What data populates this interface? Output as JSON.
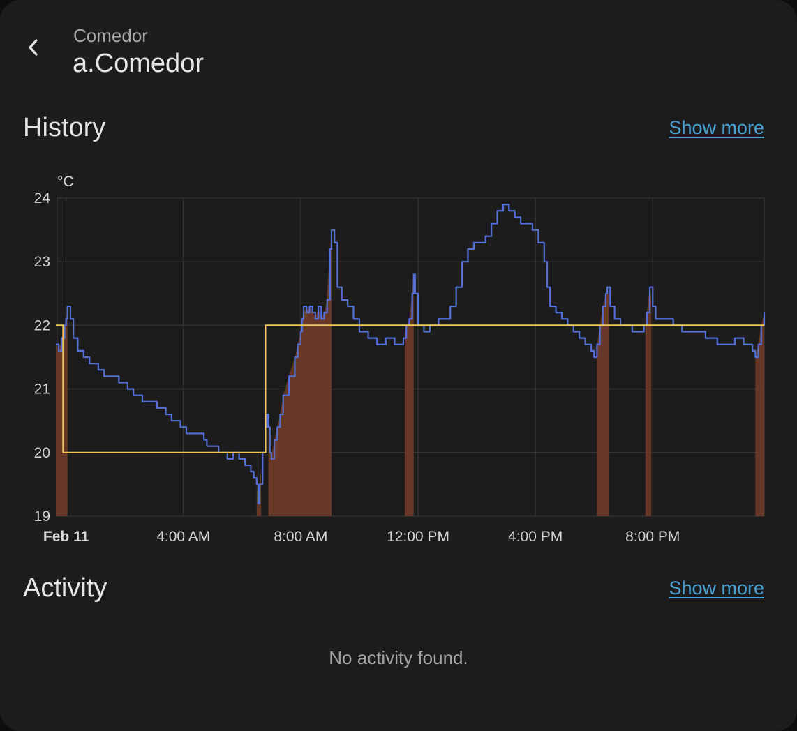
{
  "header": {
    "back_icon": "chevron-left-icon",
    "subtitle": "Comedor",
    "title": "a.Comedor"
  },
  "history": {
    "title": "History",
    "show_more": "Show more"
  },
  "activity": {
    "title": "Activity",
    "show_more": "Show more",
    "empty_text": "No activity found."
  },
  "colors": {
    "background": "#1c1c1c",
    "current_temperature": "#5470d6",
    "target_temperature": "#f2c55c",
    "heating": "#6b3a28",
    "link": "#4aa0d3"
  },
  "chart_data": {
    "type": "line",
    "unit": "°C",
    "xlim": [
      -0.3,
      23.8
    ],
    "ylim": [
      19,
      24
    ],
    "y_ticks": [
      19,
      20,
      21,
      22,
      23,
      24
    ],
    "x_ticks": [
      {
        "t": 0,
        "label": "Feb 11",
        "bold": true
      },
      {
        "t": 4,
        "label": "4:00 AM"
      },
      {
        "t": 8,
        "label": "8:00 AM"
      },
      {
        "t": 12,
        "label": "12:00 PM"
      },
      {
        "t": 16,
        "label": "4:00 PM"
      },
      {
        "t": 20,
        "label": "8:00 PM"
      }
    ],
    "grid": true,
    "series": [
      {
        "kind": "current_temperature",
        "points": [
          [
            -0.35,
            21.7
          ],
          [
            -0.25,
            21.6
          ],
          [
            -0.15,
            21.8
          ],
          [
            -0.05,
            22.0
          ],
          [
            0.0,
            22.1
          ],
          [
            0.05,
            22.3
          ],
          [
            0.15,
            22.1
          ],
          [
            0.25,
            21.8
          ],
          [
            0.4,
            21.6
          ],
          [
            0.6,
            21.5
          ],
          [
            0.8,
            21.4
          ],
          [
            1.1,
            21.3
          ],
          [
            1.3,
            21.2
          ],
          [
            1.6,
            21.2
          ],
          [
            1.8,
            21.1
          ],
          [
            2.1,
            21.0
          ],
          [
            2.3,
            20.9
          ],
          [
            2.6,
            20.8
          ],
          [
            2.9,
            20.8
          ],
          [
            3.1,
            20.7
          ],
          [
            3.4,
            20.6
          ],
          [
            3.6,
            20.5
          ],
          [
            3.9,
            20.4
          ],
          [
            4.1,
            20.3
          ],
          [
            4.4,
            20.3
          ],
          [
            4.7,
            20.2
          ],
          [
            4.8,
            20.1
          ],
          [
            5.0,
            20.1
          ],
          [
            5.2,
            20.0
          ],
          [
            5.4,
            20.0
          ],
          [
            5.5,
            19.9
          ],
          [
            5.7,
            20.0
          ],
          [
            5.9,
            19.9
          ],
          [
            6.1,
            19.8
          ],
          [
            6.3,
            19.7
          ],
          [
            6.4,
            19.6
          ],
          [
            6.5,
            19.5
          ],
          [
            6.55,
            19.2
          ],
          [
            6.6,
            19.5
          ],
          [
            6.7,
            20.0
          ],
          [
            6.8,
            20.4
          ],
          [
            6.85,
            20.6
          ],
          [
            6.9,
            20.4
          ],
          [
            6.95,
            20.0
          ],
          [
            7.0,
            19.9
          ],
          [
            7.1,
            20.2
          ],
          [
            7.2,
            20.4
          ],
          [
            7.3,
            20.6
          ],
          [
            7.4,
            20.9
          ],
          [
            7.6,
            21.2
          ],
          [
            7.8,
            21.5
          ],
          [
            7.9,
            21.7
          ],
          [
            8.0,
            21.9
          ],
          [
            8.05,
            22.1
          ],
          [
            8.1,
            22.3
          ],
          [
            8.2,
            22.2
          ],
          [
            8.3,
            22.3
          ],
          [
            8.4,
            22.2
          ],
          [
            8.5,
            22.1
          ],
          [
            8.6,
            22.3
          ],
          [
            8.7,
            22.1
          ],
          [
            8.8,
            22.2
          ],
          [
            8.9,
            22.4
          ],
          [
            9.0,
            23.2
          ],
          [
            9.05,
            23.5
          ],
          [
            9.15,
            23.3
          ],
          [
            9.25,
            22.6
          ],
          [
            9.4,
            22.4
          ],
          [
            9.6,
            22.3
          ],
          [
            9.8,
            22.1
          ],
          [
            10.0,
            21.9
          ],
          [
            10.3,
            21.8
          ],
          [
            10.6,
            21.7
          ],
          [
            10.9,
            21.8
          ],
          [
            11.2,
            21.7
          ],
          [
            11.4,
            21.7
          ],
          [
            11.5,
            21.8
          ],
          [
            11.6,
            22.0
          ],
          [
            11.7,
            22.1
          ],
          [
            11.8,
            22.5
          ],
          [
            11.85,
            22.8
          ],
          [
            11.9,
            22.5
          ],
          [
            12.0,
            22.0
          ],
          [
            12.2,
            21.9
          ],
          [
            12.4,
            22.0
          ],
          [
            12.7,
            22.1
          ],
          [
            12.9,
            22.1
          ],
          [
            13.1,
            22.3
          ],
          [
            13.3,
            22.6
          ],
          [
            13.5,
            23.0
          ],
          [
            13.7,
            23.2
          ],
          [
            13.9,
            23.3
          ],
          [
            14.1,
            23.3
          ],
          [
            14.3,
            23.4
          ],
          [
            14.5,
            23.6
          ],
          [
            14.7,
            23.8
          ],
          [
            14.9,
            23.9
          ],
          [
            15.1,
            23.8
          ],
          [
            15.3,
            23.7
          ],
          [
            15.5,
            23.6
          ],
          [
            15.7,
            23.6
          ],
          [
            15.9,
            23.5
          ],
          [
            16.1,
            23.3
          ],
          [
            16.3,
            23.0
          ],
          [
            16.4,
            22.6
          ],
          [
            16.5,
            22.3
          ],
          [
            16.7,
            22.2
          ],
          [
            16.9,
            22.1
          ],
          [
            17.1,
            22.0
          ],
          [
            17.3,
            21.9
          ],
          [
            17.5,
            21.8
          ],
          [
            17.7,
            21.7
          ],
          [
            17.9,
            21.6
          ],
          [
            18.0,
            21.5
          ],
          [
            18.1,
            21.7
          ],
          [
            18.2,
            22.0
          ],
          [
            18.3,
            22.3
          ],
          [
            18.4,
            22.5
          ],
          [
            18.45,
            22.6
          ],
          [
            18.55,
            22.3
          ],
          [
            18.7,
            22.1
          ],
          [
            18.9,
            22.0
          ],
          [
            19.1,
            22.0
          ],
          [
            19.3,
            21.9
          ],
          [
            19.5,
            21.9
          ],
          [
            19.6,
            21.9
          ],
          [
            19.7,
            22.0
          ],
          [
            19.8,
            22.2
          ],
          [
            19.9,
            22.6
          ],
          [
            20.0,
            22.3
          ],
          [
            20.1,
            22.1
          ],
          [
            20.4,
            22.1
          ],
          [
            20.7,
            22.0
          ],
          [
            21.0,
            21.9
          ],
          [
            21.3,
            21.9
          ],
          [
            21.6,
            21.9
          ],
          [
            21.8,
            21.8
          ],
          [
            22.0,
            21.8
          ],
          [
            22.2,
            21.7
          ],
          [
            22.5,
            21.7
          ],
          [
            22.8,
            21.8
          ],
          [
            23.1,
            21.7
          ],
          [
            23.4,
            21.6
          ],
          [
            23.5,
            21.5
          ],
          [
            23.6,
            21.7
          ],
          [
            23.7,
            22.0
          ],
          [
            23.8,
            22.2
          ]
        ]
      },
      {
        "kind": "target_temperature",
        "points": [
          [
            -0.35,
            22
          ],
          [
            -0.1,
            22
          ],
          [
            -0.1,
            20
          ],
          [
            6.8,
            20
          ],
          [
            6.8,
            22
          ],
          [
            23.8,
            22
          ]
        ]
      }
    ],
    "heating_periods": [
      [
        -0.35,
        0.05
      ],
      [
        6.5,
        6.65
      ],
      [
        6.9,
        9.05
      ],
      [
        11.55,
        11.85
      ],
      [
        18.1,
        18.5
      ],
      [
        19.75,
        19.95
      ],
      [
        23.5,
        23.8
      ]
    ]
  }
}
